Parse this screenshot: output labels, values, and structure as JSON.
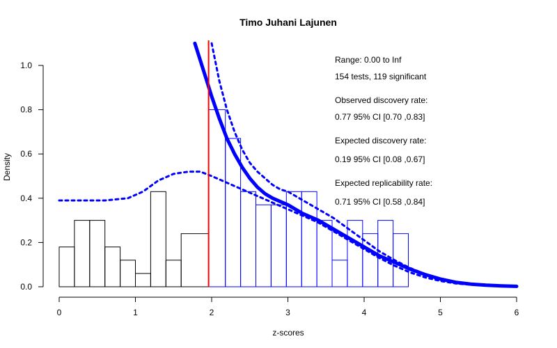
{
  "chart_data": {
    "type": "histogram",
    "title": "Timo Juhani Lajunen",
    "xlabel": "z-scores",
    "ylabel": "Density",
    "xlim": [
      0,
      6
    ],
    "ylim": [
      0,
      1.1
    ],
    "x_ticks": [
      "0",
      "1",
      "2",
      "3",
      "4",
      "5",
      "6"
    ],
    "y_ticks": [
      "0.0",
      "0.2",
      "0.4",
      "0.6",
      "0.8",
      "1.0"
    ],
    "x_tick_values": [
      0,
      1,
      2,
      3,
      4,
      5,
      6
    ],
    "y_tick_values": [
      0,
      0.2,
      0.4,
      0.6,
      0.8,
      1.0
    ],
    "critical_z": 1.96,
    "bins": [
      {
        "x0": 0.0,
        "x1": 0.2,
        "density": 0.18,
        "significant": false
      },
      {
        "x0": 0.2,
        "x1": 0.4,
        "density": 0.3,
        "significant": false
      },
      {
        "x0": 0.4,
        "x1": 0.6,
        "density": 0.3,
        "significant": false
      },
      {
        "x0": 0.6,
        "x1": 0.8,
        "density": 0.18,
        "significant": false
      },
      {
        "x0": 0.8,
        "x1": 1.0,
        "density": 0.12,
        "significant": false
      },
      {
        "x0": 1.0,
        "x1": 1.2,
        "density": 0.06,
        "significant": false
      },
      {
        "x0": 1.2,
        "x1": 1.4,
        "density": 0.43,
        "significant": false
      },
      {
        "x0": 1.4,
        "x1": 1.6,
        "density": 0.12,
        "significant": false
      },
      {
        "x0": 1.6,
        "x1": 1.96,
        "density": 0.24,
        "significant": false
      },
      {
        "x0": 1.96,
        "x1": 2.18,
        "density": 0.8,
        "significant": true
      },
      {
        "x0": 2.18,
        "x1": 2.38,
        "density": 0.67,
        "significant": true
      },
      {
        "x0": 2.38,
        "x1": 2.58,
        "density": 0.43,
        "significant": true
      },
      {
        "x0": 2.58,
        "x1": 2.78,
        "density": 0.37,
        "significant": true
      },
      {
        "x0": 2.78,
        "x1": 2.98,
        "density": 0.37,
        "significant": true
      },
      {
        "x0": 2.98,
        "x1": 3.18,
        "density": 0.43,
        "significant": true
      },
      {
        "x0": 3.18,
        "x1": 3.38,
        "density": 0.43,
        "significant": true
      },
      {
        "x0": 3.38,
        "x1": 3.58,
        "density": 0.3,
        "significant": true
      },
      {
        "x0": 3.58,
        "x1": 3.78,
        "density": 0.12,
        "significant": true
      },
      {
        "x0": 3.78,
        "x1": 3.98,
        "density": 0.3,
        "significant": true
      },
      {
        "x0": 3.98,
        "x1": 4.18,
        "density": 0.24,
        "significant": true
      },
      {
        "x0": 4.18,
        "x1": 4.38,
        "density": 0.3,
        "significant": true
      },
      {
        "x0": 4.38,
        "x1": 4.58,
        "density": 0.24,
        "significant": true
      }
    ],
    "fitted_curve": {
      "x": [
        1.78,
        1.9,
        2.0,
        2.1,
        2.2,
        2.3,
        2.4,
        2.5,
        2.6,
        2.7,
        2.8,
        3.0,
        3.2,
        3.4,
        3.6,
        3.8,
        4.0,
        4.2,
        4.4,
        4.6,
        4.8,
        5.0,
        5.2,
        5.4,
        5.6,
        5.8,
        6.0
      ],
      "y": [
        1.1,
        0.97,
        0.86,
        0.76,
        0.67,
        0.6,
        0.54,
        0.49,
        0.45,
        0.42,
        0.4,
        0.37,
        0.33,
        0.3,
        0.26,
        0.22,
        0.18,
        0.14,
        0.11,
        0.08,
        0.055,
        0.035,
        0.02,
        0.012,
        0.007,
        0.004,
        0.002
      ]
    },
    "ci_upper": {
      "x": [
        2.0,
        2.1,
        2.2,
        2.3,
        2.4,
        2.5,
        2.6,
        2.7,
        2.8,
        2.9,
        3.0,
        3.2,
        3.4,
        3.6,
        3.8,
        4.0,
        4.2,
        4.4,
        4.6,
        4.8,
        5.0,
        5.2,
        5.4,
        5.6,
        5.8,
        6.0
      ],
      "y": [
        1.1,
        0.93,
        0.8,
        0.7,
        0.62,
        0.56,
        0.52,
        0.49,
        0.46,
        0.44,
        0.43,
        0.39,
        0.35,
        0.31,
        0.26,
        0.21,
        0.16,
        0.12,
        0.085,
        0.057,
        0.036,
        0.022,
        0.013,
        0.007,
        0.004,
        0.002
      ]
    },
    "ci_lower": {
      "x": [
        0.0,
        0.3,
        0.6,
        0.9,
        1.1,
        1.3,
        1.5,
        1.7,
        1.85,
        2.0,
        2.2,
        2.4,
        2.6,
        2.8,
        3.0,
        3.2,
        3.4,
        3.6,
        3.8,
        4.0,
        4.2,
        4.4,
        4.6,
        4.8,
        5.0,
        5.2,
        5.4,
        5.6,
        5.8,
        6.0
      ],
      "y": [
        0.39,
        0.39,
        0.39,
        0.4,
        0.43,
        0.48,
        0.51,
        0.52,
        0.52,
        0.5,
        0.47,
        0.44,
        0.41,
        0.38,
        0.35,
        0.32,
        0.29,
        0.25,
        0.21,
        0.17,
        0.13,
        0.095,
        0.065,
        0.042,
        0.026,
        0.015,
        0.009,
        0.005,
        0.003,
        0.001
      ]
    },
    "colors": {
      "nonsignificant_bars": "#000000",
      "significant_bars": "#0000ff",
      "curve": "#0000ff",
      "critical_line": "#ff0000"
    },
    "annotations": [
      "Range: 0.00 to Inf",
      "154 tests, 119 significant",
      "Observed discovery rate:",
      "0.77  95% CI [0.70 ,0.83]",
      "Expected discovery rate:",
      "0.19  95% CI [0.08 ,0.67]",
      "Expected replicability rate:",
      "0.71  95% CI [0.58 ,0.84]"
    ]
  }
}
